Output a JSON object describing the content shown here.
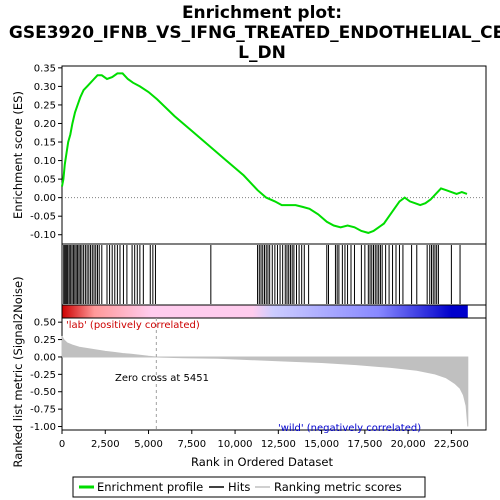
{
  "chart_data": {
    "type": "line",
    "title_line1": "Enrichment plot:",
    "title_line2": "GSE3920_IFNB_VS_IFNG_TREATED_ENDOTHELIAL_CEL",
    "title_line3": "L_DN",
    "x_label": "Rank in Ordered Dataset",
    "x_range": [
      0,
      24500
    ],
    "x_ticks": [
      0,
      2500,
      5000,
      7500,
      10000,
      12500,
      15000,
      17500,
      20000,
      22500
    ],
    "x_tick_labels": [
      "0",
      "2,500",
      "5,000",
      "7,500",
      "10,000",
      "12,500",
      "15,000",
      "17,500",
      "20,000",
      "22,500"
    ],
    "es_panel": {
      "y_label": "Enrichment score (ES)",
      "y_range": [
        -0.125,
        0.355
      ],
      "y_ticks": [
        -0.1,
        -0.05,
        0.0,
        0.05,
        0.1,
        0.15,
        0.2,
        0.25,
        0.3,
        0.35
      ],
      "y_tick_labels": [
        "-0.10",
        "-0.05",
        "0.00",
        "0.05",
        "0.10",
        "0.15",
        "0.20",
        "0.25",
        "0.30",
        "0.35"
      ],
      "line_color": "#00dd00",
      "profile_x": [
        0,
        80,
        160,
        260,
        360,
        480,
        600,
        750,
        900,
        1050,
        1250,
        1450,
        1650,
        1850,
        2050,
        2300,
        2600,
        2900,
        3200,
        3500,
        3800,
        4100,
        4500,
        5000,
        5500,
        6500,
        7500,
        8500,
        9500,
        10500,
        11300,
        11800,
        12300,
        12700,
        13100,
        13500,
        13900,
        14300,
        14800,
        15300,
        15700,
        16100,
        16500,
        16900,
        17300,
        17700,
        18000,
        18300,
        18600,
        18900,
        19200,
        19500,
        19800,
        20100,
        20400,
        20700,
        21000,
        21300,
        21600,
        21900,
        22200,
        22500,
        22800,
        23100,
        23400
      ],
      "profile_y": [
        0.03,
        0.05,
        0.09,
        0.12,
        0.15,
        0.17,
        0.2,
        0.23,
        0.25,
        0.27,
        0.29,
        0.3,
        0.31,
        0.32,
        0.33,
        0.33,
        0.32,
        0.325,
        0.335,
        0.335,
        0.32,
        0.31,
        0.3,
        0.285,
        0.265,
        0.22,
        0.18,
        0.14,
        0.1,
        0.06,
        0.02,
        0.0,
        -0.01,
        -0.02,
        -0.02,
        -0.02,
        -0.025,
        -0.03,
        -0.045,
        -0.065,
        -0.075,
        -0.08,
        -0.075,
        -0.08,
        -0.09,
        -0.095,
        -0.09,
        -0.08,
        -0.07,
        -0.05,
        -0.03,
        -0.01,
        0.0,
        -0.01,
        -0.015,
        -0.02,
        -0.015,
        -0.005,
        0.01,
        0.025,
        0.02,
        0.015,
        0.01,
        0.015,
        0.01
      ],
      "hits": [
        100,
        160,
        220,
        280,
        340,
        420,
        500,
        580,
        660,
        740,
        820,
        900,
        980,
        1060,
        1150,
        1250,
        1350,
        1450,
        1550,
        1650,
        1750,
        1850,
        1950,
        2050,
        2150,
        2300,
        2600,
        2750,
        2900,
        3050,
        3200,
        3350,
        3550,
        3750,
        4050,
        4200,
        4350,
        4500,
        4700,
        5100,
        5250,
        5400,
        8600,
        11300,
        11400,
        11500,
        11600,
        11700,
        11800,
        11900,
        12000,
        12150,
        12300,
        12450,
        12600,
        12750,
        12900,
        13000,
        13100,
        13200,
        13300,
        13400,
        13550,
        13700,
        13850,
        14000,
        14250,
        15300,
        15400,
        15800,
        15900,
        16000,
        16200,
        16350,
        16500,
        16700,
        16900,
        17300,
        17500,
        17700,
        17800,
        17900,
        18000,
        18100,
        18200,
        18300,
        18400,
        18500,
        18700,
        18900,
        19100,
        19300,
        19500,
        19700,
        20200,
        20500,
        21100,
        21250,
        21350,
        21450,
        21550,
        21650,
        21750,
        22500,
        23000
      ],
      "hit_color": "#000000"
    },
    "heatmap": {
      "colors_positive": [
        "#cc0000",
        "#ff9999",
        "#ffccee"
      ],
      "colors_negative": [
        "#ccccff",
        "#8888ff",
        "#0000cc"
      ]
    },
    "metric_panel": {
      "y_label": "Ranked list metric (Signal2Noise)",
      "y_range": [
        -1.05,
        0.56
      ],
      "y_ticks": [
        -1.0,
        -0.75,
        -0.5,
        -0.25,
        0.0,
        0.25,
        0.5
      ],
      "y_tick_labels": [
        "-1.00",
        "-0.75",
        "-0.50",
        "-0.25",
        "0.00",
        "0.25",
        "0.50"
      ],
      "fill_color": "#c0c0c0",
      "curve_x": [
        0,
        100,
        300,
        600,
        1000,
        1500,
        2000,
        2500,
        3000,
        3500,
        4000,
        4500,
        5000,
        5451,
        7000,
        9000,
        11000,
        13000,
        15000,
        17000,
        19000,
        20500,
        21500,
        22200,
        22700,
        23000,
        23200,
        23350,
        23450
      ],
      "curve_y": [
        0.3,
        0.25,
        0.2,
        0.17,
        0.14,
        0.12,
        0.1,
        0.08,
        0.065,
        0.05,
        0.04,
        0.025,
        0.01,
        0.0,
        -0.01,
        -0.02,
        -0.04,
        -0.06,
        -0.08,
        -0.11,
        -0.15,
        -0.19,
        -0.24,
        -0.3,
        -0.38,
        -0.45,
        -0.55,
        -0.7,
        -1.0
      ],
      "zero_cross_rank": 5451,
      "zero_cross_text": "Zero cross at 5451",
      "positive_label": "'lab' (positively correlated)",
      "negative_label": "'wild' (negatively correlated)",
      "positive_color": "#cc0000",
      "negative_color": "#0000cc"
    },
    "legend": {
      "items": [
        {
          "label": "Enrichment profile",
          "kind": "line",
          "color": "#00dd00"
        },
        {
          "label": "Hits",
          "kind": "line",
          "color": "#000000"
        },
        {
          "label": "Ranking metric scores",
          "kind": "line",
          "color": "#c0c0c0"
        }
      ]
    }
  }
}
